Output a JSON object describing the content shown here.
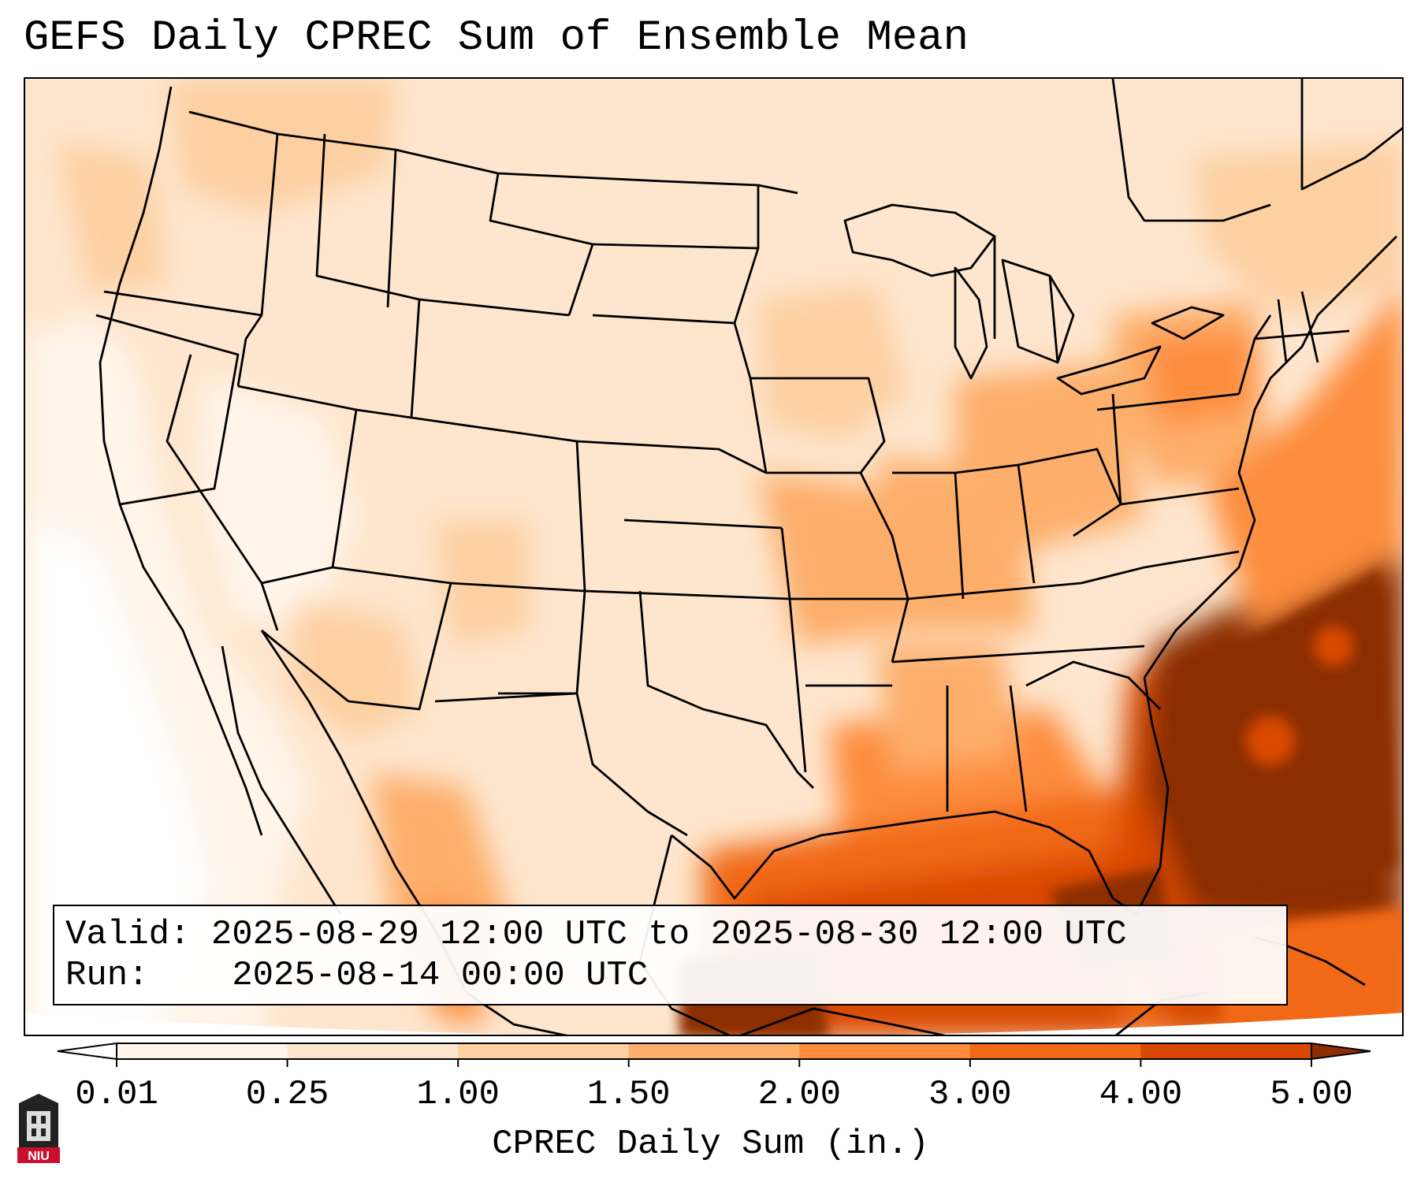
{
  "title": "GEFS Daily CPREC Sum of Ensemble Mean",
  "info": {
    "valid_label": "Valid:",
    "valid_value": "2025-08-29 12:00 UTC to 2025-08-30 12:00 UTC",
    "run_label": "Run:",
    "run_value": "2025-08-14 00:00 UTC"
  },
  "colorbar": {
    "label": "CPREC Daily Sum (in.)",
    "ticks": [
      "0.01",
      "0.25",
      "1.00",
      "1.50",
      "2.00",
      "3.00",
      "4.00",
      "5.00"
    ],
    "colors": [
      "#fff5eb",
      "#fee6ce",
      "#fdd0a2",
      "#fdae6b",
      "#fd8d3c",
      "#f16913",
      "#d94801",
      "#8c2d04"
    ],
    "extend_low_color": "#ffffff",
    "extend_high_color": "#8c2d04"
  },
  "logo": {
    "text": "NIU",
    "color": "#c8102e"
  },
  "map": {
    "projection": "Lambert conformal, CONUS",
    "borders_color": "#000000"
  }
}
